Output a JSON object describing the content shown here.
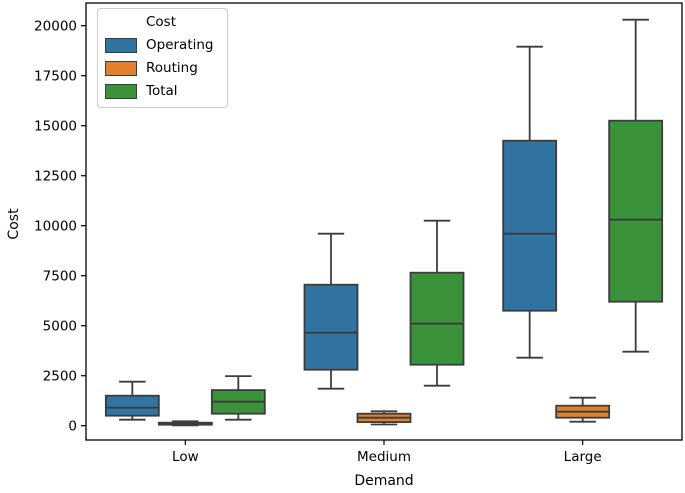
{
  "chart_data": {
    "type": "boxplot",
    "title": "",
    "xlabel": "Demand",
    "ylabel": "Cost",
    "categories": [
      "Low",
      "Medium",
      "Large"
    ],
    "yticks": [
      0,
      2500,
      5000,
      7500,
      10000,
      12500,
      15000,
      17500,
      20000
    ],
    "ylim": [
      -715,
      21135
    ],
    "grid": false,
    "edge_color": "#3C3C3C",
    "legend": {
      "title": "Cost",
      "position": "upper left"
    },
    "series": [
      {
        "name": "Operating",
        "color": "#3274A1",
        "boxes": [
          {
            "category": "Low",
            "min": 300,
            "q1": 500,
            "median": 900,
            "q3": 1500,
            "max": 2200
          },
          {
            "category": "Medium",
            "min": 1850,
            "q1": 2800,
            "median": 4650,
            "q3": 7050,
            "max": 9600
          },
          {
            "category": "Large",
            "min": 3400,
            "q1": 5750,
            "median": 9600,
            "q3": 14250,
            "max": 18950
          }
        ]
      },
      {
        "name": "Routing",
        "color": "#E1812C",
        "boxes": [
          {
            "category": "Low",
            "min": 20,
            "q1": 50,
            "median": 100,
            "q3": 150,
            "max": 220
          },
          {
            "category": "Medium",
            "min": 60,
            "q1": 180,
            "median": 400,
            "q3": 600,
            "max": 720
          },
          {
            "category": "Large",
            "min": 200,
            "q1": 400,
            "median": 700,
            "q3": 1000,
            "max": 1400
          }
        ]
      },
      {
        "name": "Total",
        "color": "#3A923A",
        "boxes": [
          {
            "category": "Low",
            "min": 300,
            "q1": 600,
            "median": 1200,
            "q3": 1780,
            "max": 2480
          },
          {
            "category": "Medium",
            "min": 2000,
            "q1": 3050,
            "median": 5100,
            "q3": 7650,
            "max": 10250
          },
          {
            "category": "Large",
            "min": 3700,
            "q1": 6200,
            "median": 10300,
            "q3": 15250,
            "max": 20300
          }
        ]
      }
    ]
  }
}
